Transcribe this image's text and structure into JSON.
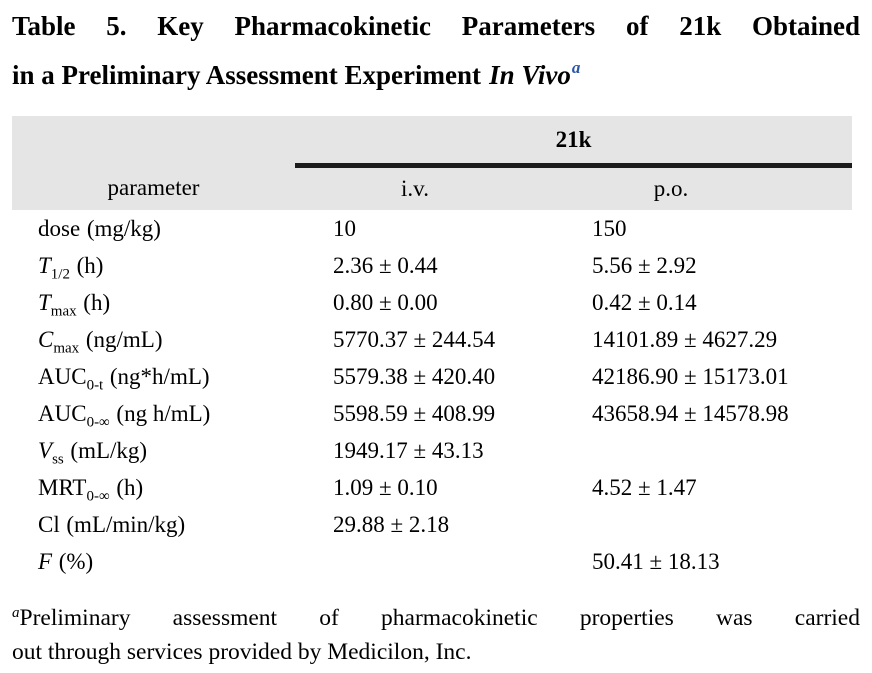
{
  "title": {
    "line1": "Table 5. Key Pharmacokinetic Parameters of 21k Obtained",
    "line2": "in a Preliminary Assessment Experiment",
    "line2_italic": "In Vivo",
    "footnote_marker": "a"
  },
  "table": {
    "group_header": "21k",
    "columns": [
      "parameter",
      "i.v.",
      "p.o."
    ],
    "rows": [
      {
        "sym": "dose",
        "sub": "",
        "unit": "(mg/kg)",
        "iv": "10",
        "po": "150"
      },
      {
        "sym": "T",
        "sub": "1/2",
        "unit": "(h)",
        "iv": "2.36 ± 0.44",
        "po": "5.56 ± 2.92"
      },
      {
        "sym": "T",
        "sub": "max",
        "unit": "(h)",
        "iv": "0.80 ± 0.00",
        "po": "0.42 ± 0.14"
      },
      {
        "sym": "C",
        "sub": "max",
        "unit": "(ng/mL)",
        "iv": "5770.37 ± 244.54",
        "po": "14101.89 ± 4627.29"
      },
      {
        "sym": "AUC",
        "sub": "0-t",
        "unit": "(ng*h/mL)",
        "iv": "5579.38 ± 420.40",
        "po": "42186.90 ± 15173.01"
      },
      {
        "sym": "AUC",
        "sub": "0-∞",
        "unit": "(ng h/mL)",
        "iv": "5598.59 ± 408.99",
        "po": "43658.94 ± 14578.98"
      },
      {
        "sym": "V",
        "sub": "ss",
        "unit": "(mL/kg)",
        "iv": "1949.17 ± 43.13",
        "po": ""
      },
      {
        "sym": "MRT",
        "sub": "0-∞",
        "unit": "(h)",
        "iv": "1.09 ± 0.10",
        "po": "4.52 ± 1.47"
      },
      {
        "sym": "Cl",
        "sub": "",
        "unit": "(mL/min/kg)",
        "iv": "29.88 ± 2.18",
        "po": ""
      },
      {
        "sym": "F",
        "sub": "",
        "unit": "(%)",
        "iv": "",
        "po": "50.41 ± 18.13"
      }
    ]
  },
  "footnote": {
    "marker": "a",
    "line1": "Preliminary assessment of pharmacokinetic properties was carried",
    "line2": "out through services provided by Medicilon, Inc."
  },
  "colors": {
    "accent_blue": "#2a55a8",
    "header_bg": "#e5e5e5",
    "rule": "#1c1c1c"
  }
}
